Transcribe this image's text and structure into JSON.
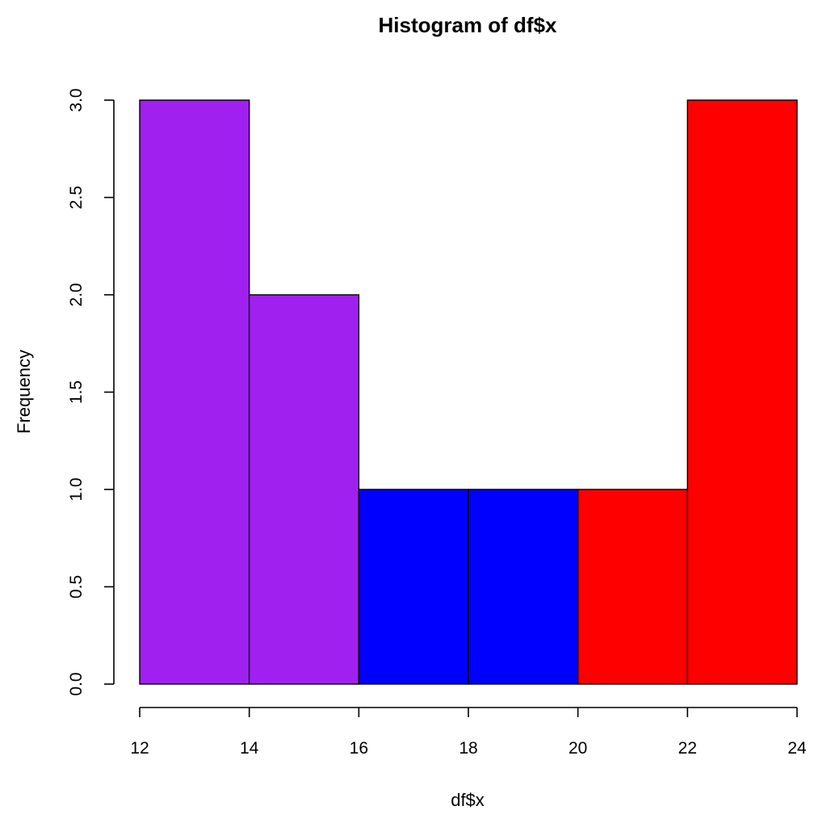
{
  "chart_data": {
    "type": "bar",
    "title": "Histogram of df$x",
    "xlabel": "df$x",
    "ylabel": "Frequency",
    "xlim": [
      12,
      24
    ],
    "ylim": [
      0,
      3
    ],
    "x_ticks": [
      "12",
      "14",
      "16",
      "18",
      "20",
      "22",
      "24"
    ],
    "y_ticks": [
      "0.0",
      "0.5",
      "1.0",
      "1.5",
      "2.0",
      "2.5",
      "3.0"
    ],
    "bins": [
      {
        "start": 12,
        "end": 14,
        "count": 3,
        "color": "#A020F0"
      },
      {
        "start": 14,
        "end": 16,
        "count": 2,
        "color": "#A020F0"
      },
      {
        "start": 16,
        "end": 18,
        "count": 1,
        "color": "#0000FF"
      },
      {
        "start": 18,
        "end": 20,
        "count": 1,
        "color": "#0000FF"
      },
      {
        "start": 20,
        "end": 22,
        "count": 1,
        "color": "#FF0000"
      },
      {
        "start": 22,
        "end": 24,
        "count": 3,
        "color": "#FF0000"
      }
    ],
    "grid": false,
    "legend": "none"
  }
}
